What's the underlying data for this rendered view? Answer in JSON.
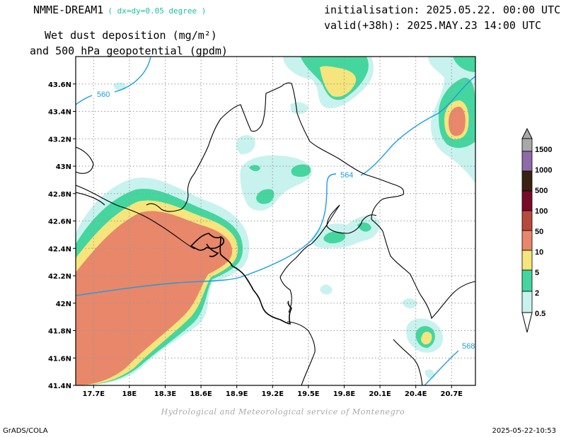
{
  "header": {
    "model": "NMME-DREAM1",
    "resolution": "( dx=dy=0.05 degree )",
    "initialisation": "initialisation: 2025.05.22. 00:00 UTC",
    "valid": "valid(+38h): 2025.MAY.23 14:00 UTC",
    "field_line1": "Wet dust deposition (mg/m²)",
    "field_line2": "and 500 hPa geopotential (gpdm)"
  },
  "axes": {
    "lat_labels": [
      "43.6N",
      "43.4N",
      "43.2N",
      "43N",
      "42.8N",
      "42.6N",
      "42.4N",
      "42.2N",
      "42N",
      "41.8N",
      "41.6N",
      "41.4N"
    ],
    "lon_labels": [
      "17.7E",
      "18E",
      "18.3E",
      "18.6E",
      "18.9E",
      "19.2E",
      "19.5E",
      "19.8E",
      "20.1E",
      "20.4E",
      "20.7E"
    ]
  },
  "contours": {
    "labels": [
      "560",
      "564",
      "568"
    ],
    "color": "#1a9de0"
  },
  "legend": {
    "levels": [
      "0.5",
      "2",
      "5",
      "10",
      "50",
      "100",
      "500",
      "1000",
      "1500"
    ],
    "colors": [
      "#c8f2ee",
      "#44d69e",
      "#f5e57c",
      "#e8876a",
      "#b84a3c",
      "#7a0a2c",
      "#3a2112",
      "#8e6aa6",
      "#a8a8a8"
    ]
  },
  "fill_colors": {
    "band_0_5": "#c8f2ee",
    "band_2": "#44d69e",
    "band_5": "#f5e57c",
    "band_10": "#e8876a"
  },
  "footer": {
    "credit": "Hydrological and Meteorological service of Montenegro",
    "left": "GrADS/COLA",
    "right": "2025-05-22-10:53"
  }
}
